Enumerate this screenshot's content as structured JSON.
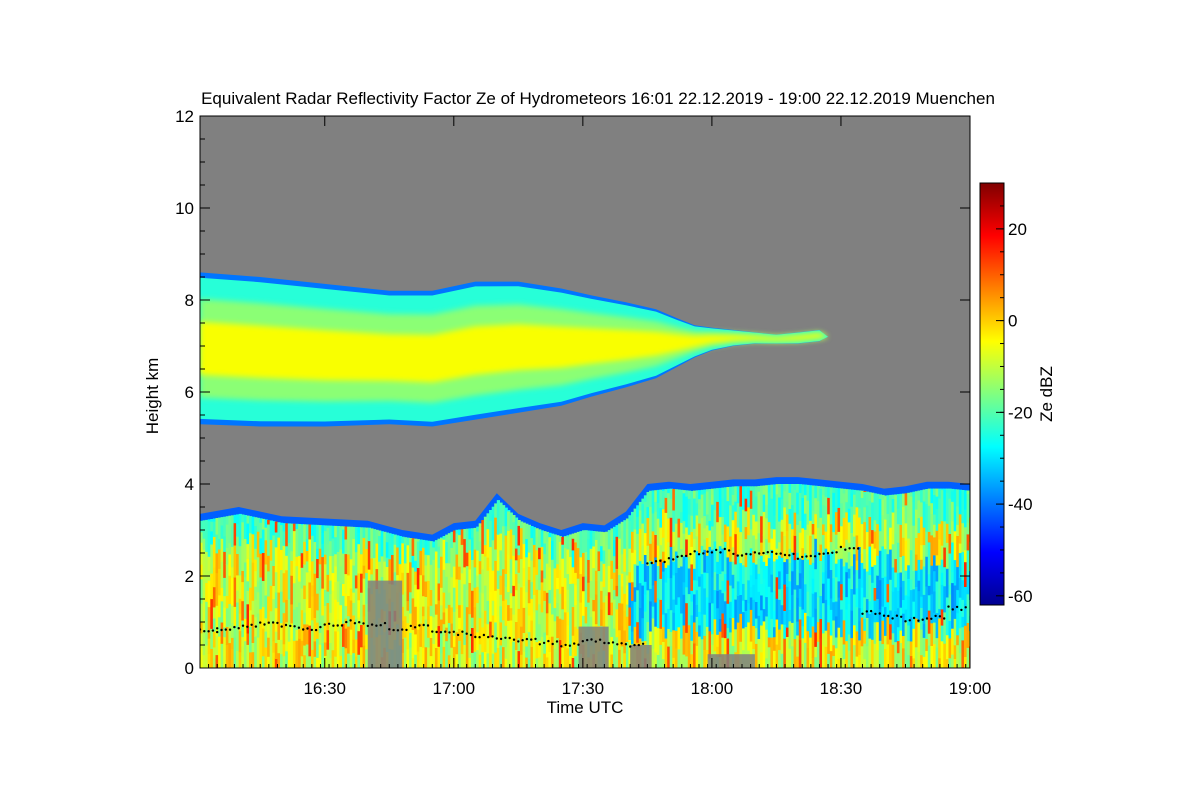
{
  "chart_data": {
    "type": "heatmap",
    "title": "Equivalent Radar Reflectivity Factor Ze of Hydrometeors   16:01 22.12.2019 - 19:00 22.12.2019 Muenchen",
    "xlabel": "Time UTC",
    "ylabel": "Height km",
    "x_range_minutes": [
      961,
      1140
    ],
    "xlim": [
      "16:01",
      "19:00"
    ],
    "ylim": [
      0,
      12
    ],
    "x_ticks": [
      {
        "minute": 990,
        "label": "16:30"
      },
      {
        "minute": 1020,
        "label": "17:00"
      },
      {
        "minute": 1050,
        "label": "17:30"
      },
      {
        "minute": 1080,
        "label": "18:00"
      },
      {
        "minute": 1110,
        "label": "18:30"
      },
      {
        "minute": 1140,
        "label": "19:00"
      }
    ],
    "y_ticks": [
      0,
      2,
      4,
      6,
      8,
      10,
      12
    ],
    "colorbar": {
      "label": "Ze dBZ",
      "range": [
        -62,
        30
      ],
      "ticks": [
        -60,
        -40,
        -20,
        0,
        20
      ],
      "no_signal_color": "#808080",
      "colormap": [
        "#00008f",
        "#0000ff",
        "#0080ff",
        "#00ffff",
        "#80ff80",
        "#ffff00",
        "#ff8000",
        "#ff0000",
        "#800000"
      ]
    },
    "background_color": "#808080",
    "upper_cloud_layer": {
      "time_minutes": [
        961,
        975,
        990,
        1005,
        1015,
        1025,
        1035,
        1045,
        1052,
        1060,
        1067,
        1072,
        1076,
        1080,
        1085,
        1090,
        1095,
        1100,
        1105,
        1107
      ],
      "top_km": [
        8.6,
        8.5,
        8.35,
        8.2,
        8.2,
        8.4,
        8.4,
        8.25,
        8.1,
        7.95,
        7.8,
        7.6,
        7.45,
        7.4,
        7.35,
        7.3,
        7.25,
        7.3,
        7.35,
        7.2
      ],
      "base_km": [
        5.3,
        5.25,
        5.25,
        5.3,
        5.25,
        5.4,
        5.55,
        5.7,
        5.9,
        6.1,
        6.3,
        6.55,
        6.75,
        6.9,
        7.0,
        7.05,
        7.05,
        7.05,
        7.1,
        7.2
      ],
      "core_dbz": -5,
      "edge_dbz": -40
    },
    "lower_cloud_layer": {
      "time_minutes": [
        961,
        970,
        980,
        990,
        1000,
        1008,
        1015,
        1020,
        1025,
        1030,
        1035,
        1040,
        1045,
        1050,
        1055,
        1060,
        1065,
        1070,
        1075,
        1080,
        1085,
        1090,
        1095,
        1100,
        1105,
        1110,
        1115,
        1120,
        1125,
        1130,
        1135,
        1140
      ],
      "top_km": [
        3.35,
        3.5,
        3.3,
        3.25,
        3.2,
        3.0,
        2.9,
        3.15,
        3.2,
        3.8,
        3.35,
        3.15,
        3.0,
        3.15,
        3.1,
        3.4,
        4.0,
        4.05,
        4.0,
        4.05,
        4.1,
        4.1,
        4.15,
        4.15,
        4.1,
        4.05,
        4.0,
        3.9,
        3.95,
        4.05,
        4.05,
        4.0
      ],
      "base_km": [
        0,
        0,
        0,
        0,
        0,
        0,
        0,
        0,
        0,
        0,
        0,
        0,
        0,
        0,
        0,
        0,
        0,
        0,
        0,
        0,
        0,
        0,
        0,
        0,
        0,
        0,
        0,
        0,
        0,
        0,
        0,
        0
      ],
      "max_dbz": 15
    },
    "melting_layer_dots": {
      "time_minutes": [
        961,
        965,
        970,
        975,
        980,
        985,
        990,
        995,
        1000,
        1005,
        1010,
        1015,
        1020,
        1025,
        1030,
        1035,
        1040,
        1045,
        1050,
        1055,
        1060,
        1065,
        1070,
        1075,
        1080,
        1085,
        1090,
        1095,
        1100,
        1105,
        1110,
        1115,
        1120,
        1125,
        1130,
        1135
      ],
      "height_km": [
        0.8,
        0.85,
        0.9,
        0.95,
        0.9,
        0.85,
        0.95,
        1.0,
        0.95,
        0.85,
        0.9,
        0.8,
        0.75,
        0.7,
        0.65,
        0.6,
        0.55,
        0.5,
        0.6,
        0.55,
        0.5,
        2.3,
        2.4,
        2.5,
        2.55,
        2.45,
        2.5,
        2.45,
        2.4,
        2.5,
        2.6,
        1.2,
        1.1,
        1.05,
        1.1,
        1.3
      ]
    }
  }
}
